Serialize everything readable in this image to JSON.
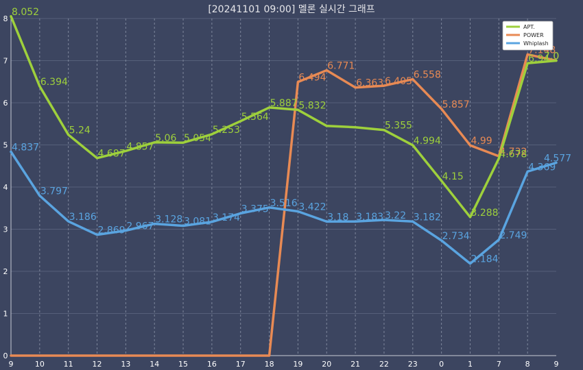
{
  "chart_data": {
    "type": "line",
    "title": "[20241101 09:00] 멜론 실시간 그래프",
    "categories": [
      "9",
      "10",
      "11",
      "12",
      "13",
      "14",
      "15",
      "16",
      "17",
      "18",
      "19",
      "20",
      "21",
      "22",
      "23",
      "0",
      "1",
      "7",
      "8",
      "9"
    ],
    "ylim": [
      0,
      8
    ],
    "yticks": [
      "0",
      "1",
      "2",
      "3",
      "4",
      "5",
      "6",
      "7",
      "8"
    ],
    "grid": true,
    "legend_position": "top-right",
    "series": [
      {
        "name": "APT.",
        "color": "#9ed03c",
        "values": [
          8.052,
          6.394,
          5.24,
          4.687,
          4.857,
          5.06,
          5.054,
          5.253,
          5.564,
          5.887,
          5.832,
          5.45,
          5.42,
          5.355,
          4.994,
          4.15,
          3.288,
          4.678,
          6.94,
          7.0
        ],
        "labels": [
          "8.052",
          "6.394",
          "5.24",
          "4.687",
          "4.857",
          "5.06",
          "5.054",
          "5.253",
          "5.564",
          "5.887",
          "5.832",
          "",
          "",
          "5.355",
          "4.994",
          "4.15",
          "3.288",
          "4.678",
          "6.94",
          "7.0"
        ]
      },
      {
        "name": "POWER",
        "color": "#e88a54",
        "values": [
          0,
          0,
          0,
          0,
          0,
          0,
          0,
          0,
          0,
          0,
          6.494,
          6.771,
          6.363,
          6.405,
          6.558,
          5.857,
          4.99,
          4.732,
          7.148,
          7.0
        ],
        "labels": [
          "",
          "",
          "",
          "",
          "",
          "",
          "",
          "",
          "",
          "",
          "6.494",
          "6.771",
          "6.363",
          "6.405",
          "6.558",
          "5.857",
          "4.99",
          "4.732",
          "7.148",
          "7.0"
        ]
      },
      {
        "name": "Whiplash",
        "color": "#5aa4e0",
        "values": [
          4.837,
          3.797,
          3.186,
          2.869,
          2.967,
          3.128,
          3.081,
          3.174,
          3.375,
          3.516,
          3.422,
          3.18,
          3.183,
          3.22,
          3.182,
          2.734,
          2.184,
          2.749,
          4.369,
          4.577
        ],
        "labels": [
          "4.837",
          "3.797",
          "3.186",
          "2.869",
          "2.967",
          "3.128",
          "3.081",
          "3.174",
          "3.375",
          "3.516",
          "3.422",
          "3.18",
          "3.183",
          "3.22",
          "3.182",
          "2.734",
          "2.184",
          "2.749",
          "4.369",
          "4.577"
        ]
      }
    ]
  }
}
